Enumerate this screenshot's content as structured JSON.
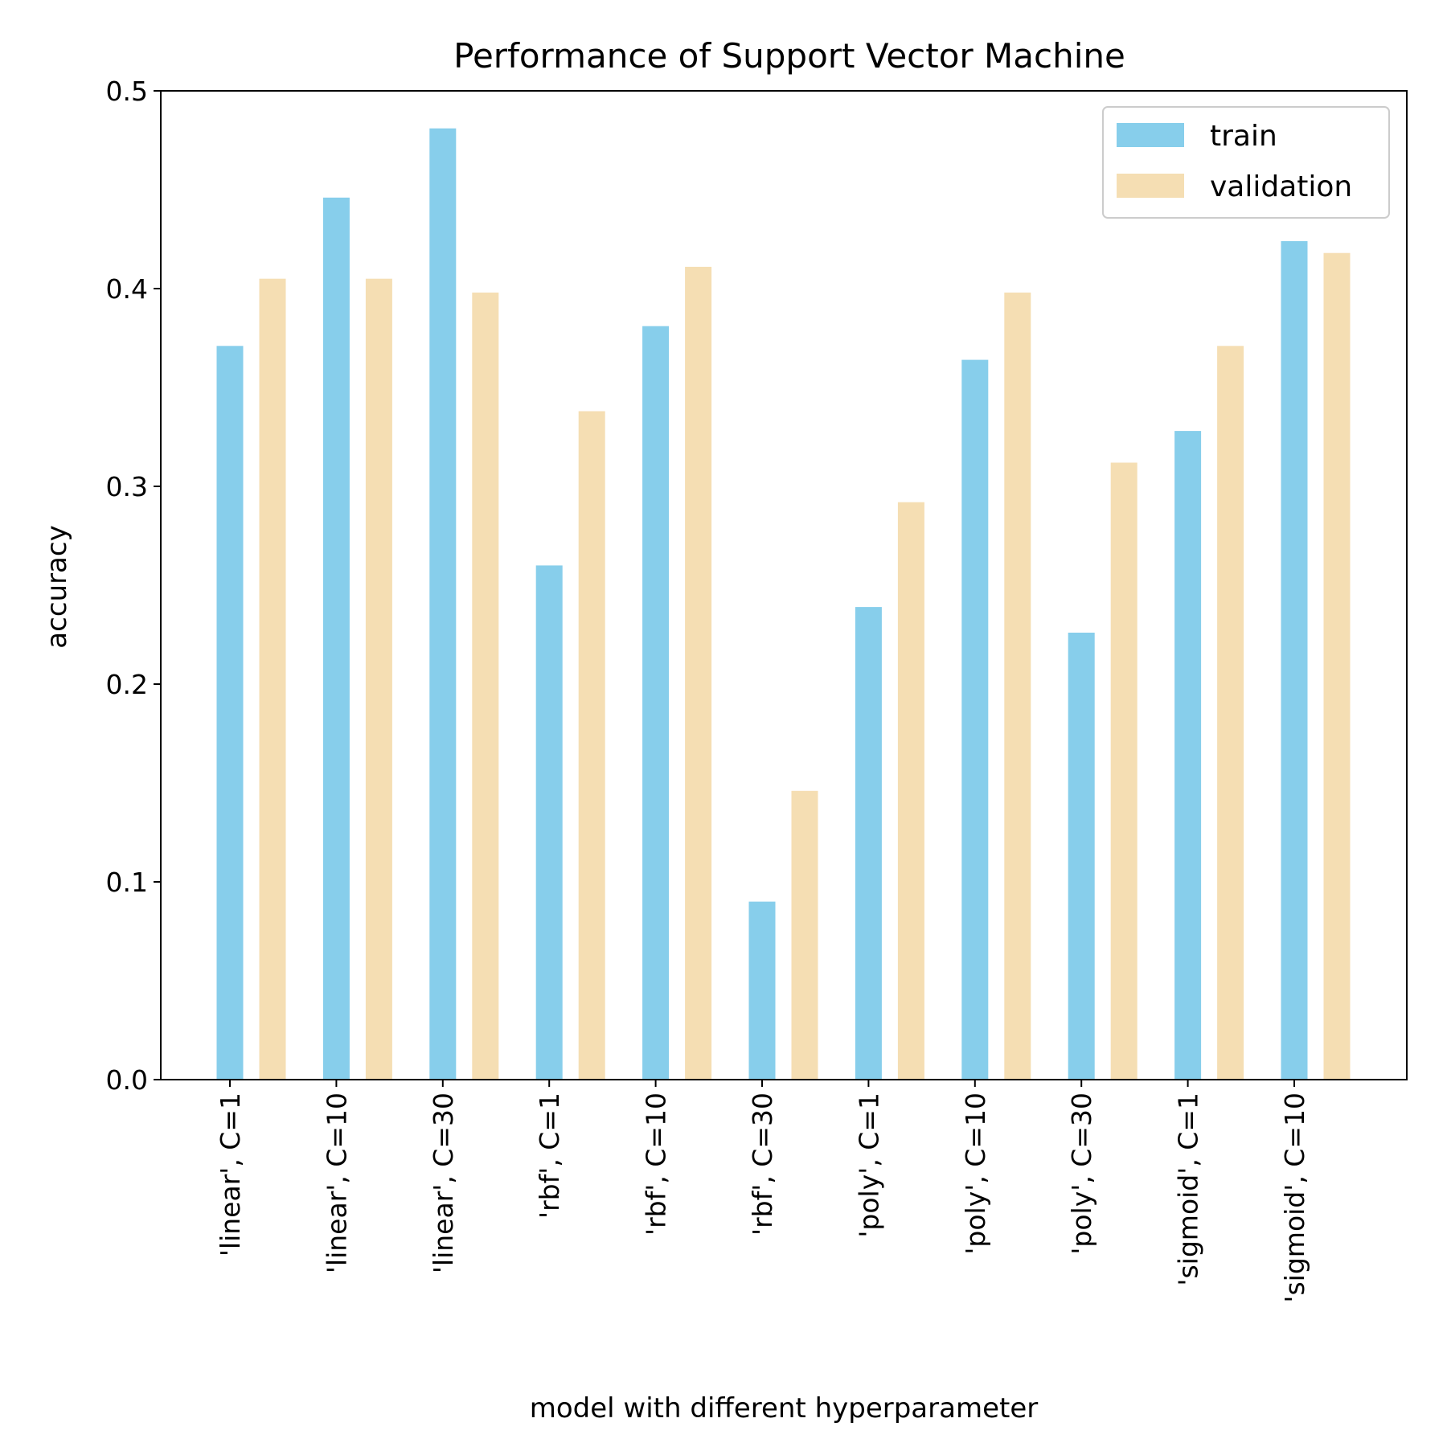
{
  "chart_data": {
    "type": "bar",
    "title": "Performance of Support Vector Machine",
    "xlabel": "model with different hyperparameter",
    "ylabel": "accuracy",
    "ylim": [
      0,
      0.5
    ],
    "yticks": [
      "0.0",
      "0.1",
      "0.2",
      "0.3",
      "0.4",
      "0.5"
    ],
    "categories": [
      "'linear', C=1",
      "'linear', C=10",
      "'linear', C=30",
      "'rbf', C=1",
      "'rbf', C=10",
      "'rbf', C=30",
      "'poly', C=1",
      "'poly', C=10",
      "'poly', C=30",
      "'sigmoid', C=1",
      "'sigmoid', C=10"
    ],
    "series": [
      {
        "name": "train",
        "color": "#87ceeb",
        "values": [
          0.371,
          0.446,
          0.481,
          0.26,
          0.381,
          0.09,
          0.239,
          0.364,
          0.226,
          0.328,
          0.424
        ]
      },
      {
        "name": "validation",
        "color": "#f5deb3",
        "values": [
          0.405,
          0.405,
          0.398,
          0.338,
          0.411,
          0.146,
          0.292,
          0.398,
          0.312,
          0.371,
          0.418
        ]
      }
    ],
    "legend": "top-right",
    "grid": false
  }
}
